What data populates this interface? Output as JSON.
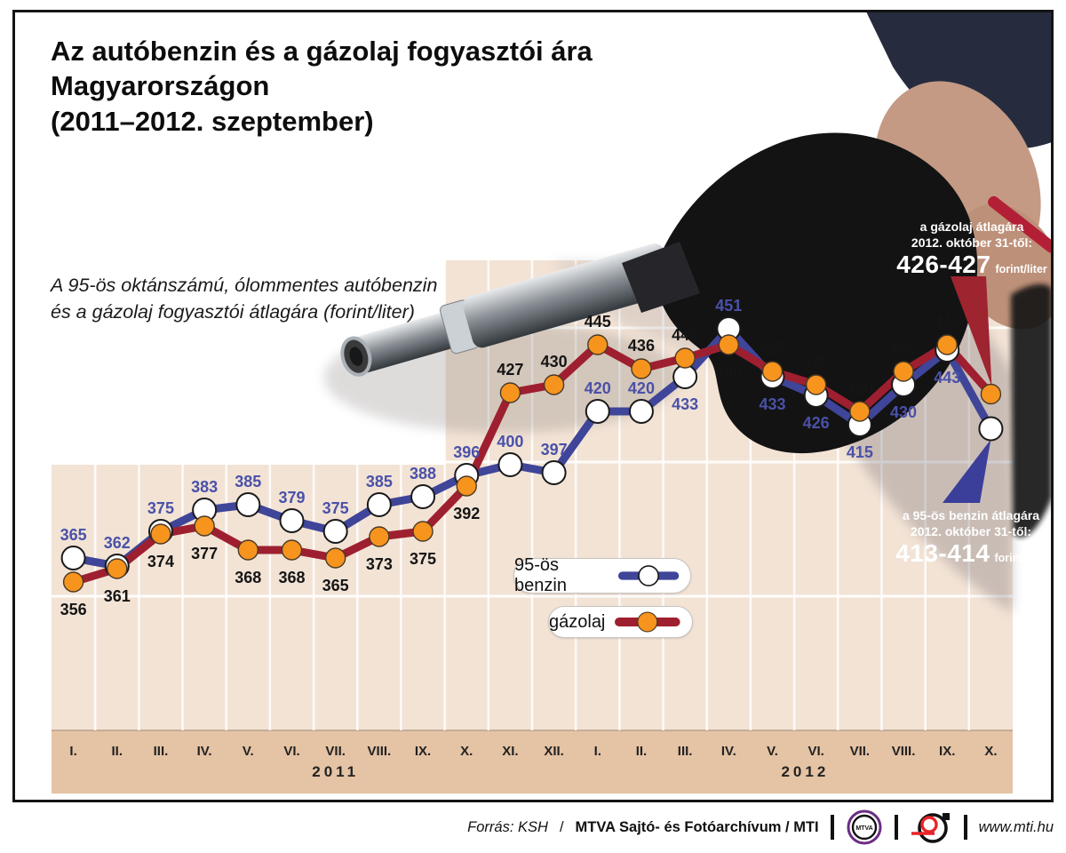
{
  "title": {
    "line1": "Az autóbenzin és a gázolaj fogyasztói ára",
    "line2": "Magyarországon",
    "line3": "(2011–2012. szeptember)"
  },
  "subtitle": {
    "line1": "A 95-ös oktánszámú, ólommentes autóbenzin",
    "line2": "és a gázolaj fogyasztói átlagára (forint/liter)"
  },
  "legend": {
    "benzin_label": "95-ös benzin",
    "gazolaj_label": "gázolaj"
  },
  "callouts": {
    "diesel": {
      "line1": "a gázolaj átlagára",
      "line2": "2012. október 31-től:",
      "value": "426-427",
      "unit": "forint/liter",
      "color": "#9e2430"
    },
    "petrol": {
      "line1": "a 95-ös benzin átlagára",
      "line2": "2012. október 31-től:",
      "value": "413-414",
      "unit": "forint/liter",
      "color": "#3b3f99"
    }
  },
  "footer": {
    "source_italic": "Forrás: KSH",
    "source_sep": "/",
    "source_bold": "MTVA Sajtó- és Fotóarchívum / MTI",
    "mtva_logo_text": "MTVA",
    "website": "www.mti.hu"
  },
  "chart_data": {
    "type": "line",
    "months": [
      "I.",
      "II.",
      "III.",
      "IV.",
      "V.",
      "VI.",
      "VII.",
      "VIII.",
      "IX.",
      "X.",
      "XI.",
      "XII.",
      "I.",
      "II.",
      "III.",
      "IV.",
      "V.",
      "VI.",
      "VII.",
      "VIII.",
      "IX.",
      "X."
    ],
    "year_groups": [
      {
        "label": "2011",
        "months_count": 12,
        "center_col": 6.5
      },
      {
        "label": "2012",
        "months_count": 10,
        "center_col": 17.25
      }
    ],
    "labeled_points": 21,
    "series": [
      {
        "name": "95-ös benzin",
        "line_color": "#3f4598",
        "marker_fill": "#ffffff",
        "marker_stroke": "#1a1a1a",
        "label_color": "#4a51a8",
        "values": [
          365,
          362,
          375,
          383,
          385,
          379,
          375,
          385,
          388,
          396,
          400,
          397,
          420,
          420,
          433,
          451,
          433,
          426,
          415,
          430,
          443,
          413.5
        ],
        "october_note": "413-414 forint/liter from 2012. október 31."
      },
      {
        "name": "gázolaj",
        "line_color": "#9e1f30",
        "marker_fill": "#f7941e",
        "marker_stroke": "#4a3a26",
        "label_color": "#151515",
        "values": [
          356,
          361,
          374,
          377,
          368,
          368,
          365,
          373,
          375,
          392,
          427,
          430,
          445,
          436,
          440,
          445,
          435,
          430,
          420,
          435,
          445,
          426.5
        ],
        "october_note": "426-427 forint/liter from 2012. október 31."
      }
    ],
    "unit": "forint/liter",
    "grid": true,
    "ylim": [
      340,
      470
    ],
    "panel_color": "#f2e3d5",
    "axis_strip_color": "#e5c3a5",
    "grid_color": "#ffffff"
  }
}
